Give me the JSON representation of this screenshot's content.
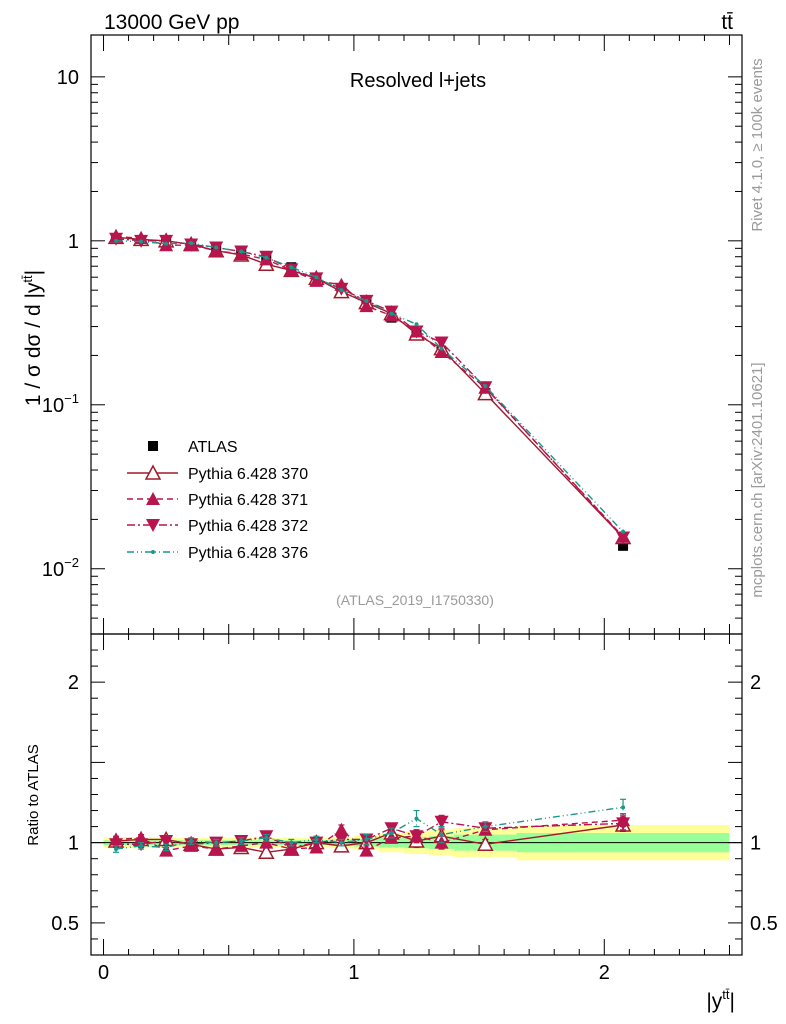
{
  "header": {
    "left_label": "13000 GeV pp",
    "right_label": "tt̄"
  },
  "side_labels": {
    "rivet": "Rivet 4.1.0, ≥ 100k events",
    "mcplots": "mcplots.cern.ch [arXiv:2401.10621]"
  },
  "colors": {
    "atlas": "#000000",
    "p370": "#a01a2a",
    "p371": "#b8144e",
    "p372": "#b8144e",
    "p376": "#18988a",
    "band_inner": "#99ff99",
    "band_outer": "#ffff99"
  },
  "chart_data": [
    {
      "type": "scatter",
      "title": "Resolved l+jets",
      "analysis_tag": "(ATLAS_2019_I1750330)",
      "ylabel_text": "1 / σ dσ / d |y",
      "ylabel_sup": "tt̄",
      "ylabel_close": "|",
      "yscale": "log",
      "ylim": [
        0.004,
        18
      ],
      "xlim": [
        -0.05,
        2.55
      ],
      "y_ticks": [
        {
          "v": 10,
          "base": "10",
          "exp": ""
        },
        {
          "v": 1,
          "base": "1",
          "exp": ""
        },
        {
          "v": 0.1,
          "base": "10",
          "exp": "−1"
        },
        {
          "v": 0.01,
          "base": "10",
          "exp": "−2"
        }
      ],
      "x": [
        0.05,
        0.15,
        0.25,
        0.35,
        0.45,
        0.55,
        0.65,
        0.75,
        0.85,
        0.95,
        1.05,
        1.15,
        1.25,
        1.35,
        1.525,
        2.075
      ],
      "x_edges": [
        0,
        0.1,
        0.2,
        0.3,
        0.4,
        0.5,
        0.6,
        0.7,
        0.8,
        0.9,
        1.0,
        1.1,
        1.2,
        1.3,
        1.4,
        1.65,
        2.5
      ],
      "series": [
        {
          "name": "ATLAS",
          "key": "atlas",
          "marker": "square",
          "values": [
            1.04,
            1.01,
            0.99,
            0.96,
            0.91,
            0.85,
            0.77,
            0.69,
            0.59,
            0.5,
            0.42,
            0.34,
            0.27,
            0.21,
            0.118,
            0.0138
          ]
        },
        {
          "name": "Pythia 6.428 370",
          "key": "p370",
          "marker": "triangle-open",
          "dash": "",
          "values": [
            1.05,
            1.02,
            1.0,
            0.95,
            0.87,
            0.82,
            0.72,
            0.66,
            0.59,
            0.49,
            0.42,
            0.36,
            0.27,
            0.22,
            0.117,
            0.0155
          ]
        },
        {
          "name": "Pythia 6.428 371",
          "key": "p371",
          "marker": "triangle-up",
          "dash": "6,4",
          "values": [
            1.06,
            1.04,
            0.94,
            0.94,
            0.87,
            0.83,
            0.77,
            0.66,
            0.57,
            0.54,
            0.4,
            0.35,
            0.28,
            0.21,
            0.127,
            0.0157
          ]
        },
        {
          "name": "Pythia 6.428 372",
          "key": "p372",
          "marker": "triangle-down",
          "dash": "8,3,2,3",
          "values": [
            1.03,
            1.0,
            1.0,
            0.95,
            0.91,
            0.86,
            0.8,
            0.67,
            0.59,
            0.51,
            0.43,
            0.37,
            0.28,
            0.24,
            0.128,
            0.0155
          ]
        },
        {
          "name": "Pythia 6.428 376",
          "key": "p376",
          "marker": "dot",
          "dash": "7,3,1,3,1,3",
          "values": [
            1.0,
            0.99,
            0.96,
            0.97,
            0.91,
            0.86,
            0.79,
            0.69,
            0.6,
            0.5,
            0.43,
            0.36,
            0.31,
            0.22,
            0.13,
            0.0168
          ]
        }
      ],
      "legend_position": "lower-left"
    },
    {
      "type": "scatter",
      "ylabel": "Ratio to ATLAS",
      "xlabel_base": "|y",
      "xlabel_sup": "tt̄",
      "xlabel_close": "|",
      "ylim": [
        0.3,
        2.3
      ],
      "xlim": [
        -0.05,
        2.55
      ],
      "y_ticks": [
        {
          "v": 2,
          "label": "2"
        },
        {
          "v": 1,
          "label": "1"
        },
        {
          "v": 0.5,
          "label": "0.5"
        }
      ],
      "x_ticks": [
        {
          "v": 0,
          "label": "0"
        },
        {
          "v": 1,
          "label": "1"
        },
        {
          "v": 2,
          "label": "2"
        }
      ],
      "x": [
        0.05,
        0.15,
        0.25,
        0.35,
        0.45,
        0.55,
        0.65,
        0.75,
        0.85,
        0.95,
        1.05,
        1.15,
        1.25,
        1.35,
        1.525,
        2.075
      ],
      "x_edges": [
        0,
        0.1,
        0.2,
        0.3,
        0.4,
        0.5,
        0.6,
        0.7,
        0.8,
        0.9,
        1.0,
        1.1,
        1.2,
        1.3,
        1.4,
        1.65,
        2.5
      ],
      "band_inner": [
        0.015,
        0.015,
        0.015,
        0.015,
        0.015,
        0.015,
        0.015,
        0.015,
        0.015,
        0.02,
        0.025,
        0.03,
        0.035,
        0.04,
        0.05,
        0.06
      ],
      "band_outer": [
        0.035,
        0.035,
        0.03,
        0.03,
        0.03,
        0.03,
        0.03,
        0.03,
        0.03,
        0.035,
        0.045,
        0.06,
        0.07,
        0.08,
        0.09,
        0.11
      ],
      "series": [
        {
          "name": "Pythia 6.428 370",
          "key": "p370",
          "marker": "triangle-open",
          "dash": "",
          "values": [
            1.01,
            1.02,
            1.02,
            0.99,
            0.96,
            0.97,
            0.94,
            0.96,
            1.0,
            0.98,
            1.0,
            1.06,
            1.01,
            1.04,
            0.99,
            1.11
          ],
          "errors": [
            0.02,
            0.02,
            0.02,
            0.02,
            0.02,
            0.02,
            0.02,
            0.02,
            0.02,
            0.02,
            0.03,
            0.03,
            0.04,
            0.04,
            0.03,
            0.04
          ]
        },
        {
          "name": "Pythia 6.428 371",
          "key": "p371",
          "marker": "triangle-up",
          "dash": "6,4",
          "values": [
            1.02,
            1.03,
            0.95,
            0.98,
            0.96,
            0.98,
            1.0,
            0.96,
            0.97,
            1.08,
            0.95,
            1.03,
            1.04,
            1.0,
            1.08,
            1.14
          ],
          "errors": [
            0.02,
            0.02,
            0.02,
            0.02,
            0.02,
            0.02,
            0.02,
            0.02,
            0.02,
            0.03,
            0.03,
            0.03,
            0.04,
            0.04,
            0.03,
            0.04
          ]
        },
        {
          "name": "Pythia 6.428 372",
          "key": "p372",
          "marker": "triangle-down",
          "dash": "8,3,2,3",
          "values": [
            0.99,
            0.99,
            1.01,
            0.99,
            1.0,
            1.01,
            1.04,
            0.97,
            1.0,
            1.02,
            1.02,
            1.09,
            1.04,
            1.13,
            1.09,
            1.12
          ],
          "errors": [
            0.02,
            0.02,
            0.02,
            0.02,
            0.02,
            0.02,
            0.02,
            0.02,
            0.02,
            0.02,
            0.03,
            0.03,
            0.04,
            0.04,
            0.03,
            0.04
          ]
        },
        {
          "name": "Pythia 6.428 376",
          "key": "p376",
          "marker": "dot",
          "dash": "7,3,1,3,1,3",
          "values": [
            0.96,
            0.98,
            0.97,
            1.01,
            1.0,
            1.01,
            1.03,
            1.0,
            1.02,
            1.0,
            1.02,
            1.06,
            1.15,
            1.05,
            1.1,
            1.22
          ],
          "errors": [
            0.02,
            0.02,
            0.02,
            0.02,
            0.02,
            0.02,
            0.02,
            0.02,
            0.02,
            0.02,
            0.03,
            0.03,
            0.05,
            0.05,
            0.03,
            0.05
          ]
        }
      ]
    }
  ]
}
